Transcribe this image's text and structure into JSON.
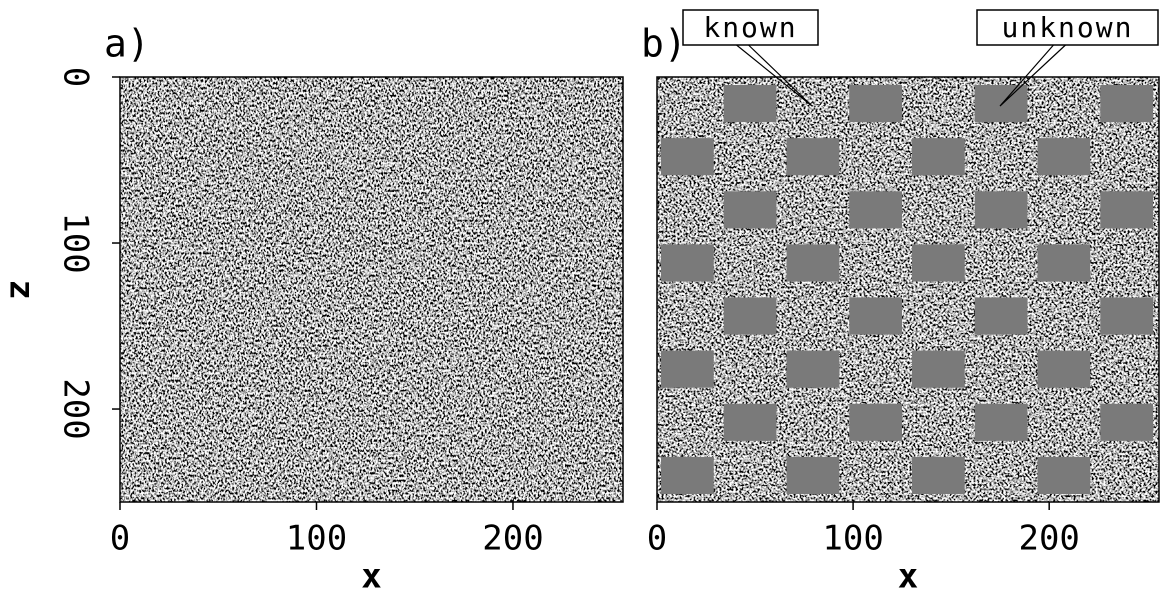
{
  "chart_data": [
    {
      "type": "image",
      "title": "a)",
      "xlabel": "x",
      "ylabel": "z",
      "xlim": [
        0,
        256
      ],
      "ylim": [
        0,
        256
      ],
      "xticks": [
        0,
        100,
        200
      ],
      "yticks": [
        0,
        100,
        200
      ]
    },
    {
      "type": "image",
      "title": "b)",
      "xlabel": "x",
      "xlim": [
        0,
        256
      ],
      "ylim": [
        0,
        256
      ],
      "xticks": [
        0,
        100,
        200
      ],
      "annotations": [
        "known",
        "unknown"
      ],
      "masked": true
    }
  ]
}
